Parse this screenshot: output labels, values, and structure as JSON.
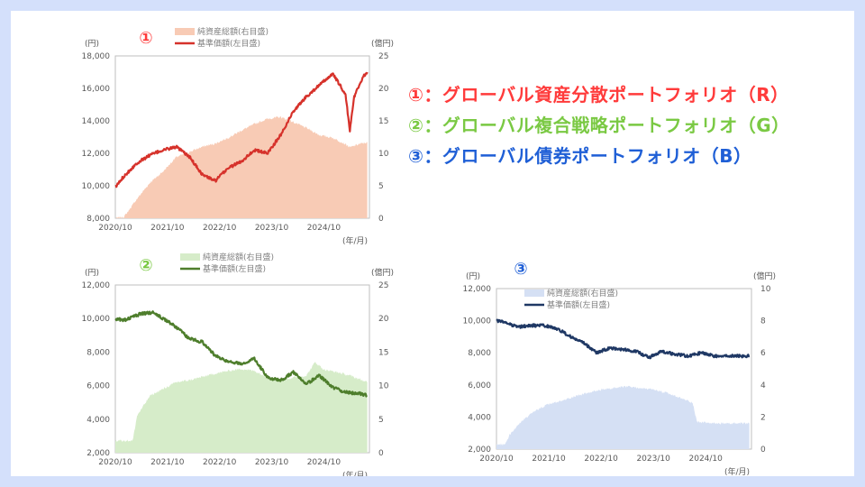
{
  "titles": [
    {
      "text": "①：グローバル資産分散ポートフォリオ（R）",
      "color": "#ff3b3b"
    },
    {
      "text": "②：グローバル複合戦略ポートフォリオ（G）",
      "color": "#7ac943"
    },
    {
      "text": "③：グローバル債券ポートフォリオ（B）",
      "color": "#1f5fd6"
    }
  ],
  "chart_data": [
    {
      "type": "line",
      "marker": "①",
      "marker_color": "#ff3b3b",
      "left_unit": "(円)",
      "right_unit": "(億円)",
      "x_unit": "(年/月)",
      "x_ticks": [
        "2020/10",
        "2021/10",
        "2022/10",
        "2023/10",
        "2024/10"
      ],
      "y_left_ticks": [
        "8,000",
        "10,000",
        "12,000",
        "14,000",
        "16,000",
        "18,000"
      ],
      "y_right_ticks": [
        "0",
        "5",
        "10",
        "15",
        "20",
        "25"
      ],
      "ylim_left": [
        8000,
        18000
      ],
      "ylim_right": [
        0,
        25
      ],
      "legend_area": "純資産総額(右目盛)",
      "legend_line": "基準価額(左目盛)",
      "area_color": "#f8cbb5",
      "line_color": "#d6322b",
      "nav_points": [
        [
          "2020/10",
          9900
        ],
        [
          "2020/12",
          10600
        ],
        [
          "2021/03",
          11400
        ],
        [
          "2021/06",
          11900
        ],
        [
          "2021/09",
          12200
        ],
        [
          "2021/12",
          12400
        ],
        [
          "2022/03",
          11800
        ],
        [
          "2022/06",
          10700
        ],
        [
          "2022/09",
          10300
        ],
        [
          "2022/12",
          11100
        ],
        [
          "2023/03",
          11500
        ],
        [
          "2023/06",
          12200
        ],
        [
          "2023/09",
          12000
        ],
        [
          "2023/12",
          13100
        ],
        [
          "2024/03",
          14600
        ],
        [
          "2024/06",
          15500
        ],
        [
          "2024/09",
          16200
        ],
        [
          "2024/12",
          16900
        ],
        [
          "2025/01",
          16500
        ],
        [
          "2025/03",
          15600
        ],
        [
          "2025/04",
          13400
        ],
        [
          "2025/05",
          15500
        ],
        [
          "2025/07",
          16700
        ],
        [
          "2025/08",
          17000
        ]
      ],
      "aum_points": [
        [
          "2020/10",
          0
        ],
        [
          "2020/12",
          0.2
        ],
        [
          "2021/03",
          3.0
        ],
        [
          "2021/06",
          5.5
        ],
        [
          "2021/09",
          7.2
        ],
        [
          "2021/12",
          9.4
        ],
        [
          "2022/03",
          10.2
        ],
        [
          "2022/06",
          11.0
        ],
        [
          "2022/09",
          11.5
        ],
        [
          "2022/12",
          12.4
        ],
        [
          "2023/03",
          13.5
        ],
        [
          "2023/06",
          14.5
        ],
        [
          "2023/09",
          15.3
        ],
        [
          "2023/12",
          15.6
        ],
        [
          "2024/03",
          14.8
        ],
        [
          "2024/06",
          13.9
        ],
        [
          "2024/09",
          12.8
        ],
        [
          "2024/12",
          12.4
        ],
        [
          "2025/03",
          11.4
        ],
        [
          "2025/04",
          10.9
        ],
        [
          "2025/06",
          11.4
        ],
        [
          "2025/08",
          11.7
        ]
      ]
    },
    {
      "type": "line",
      "marker": "②",
      "marker_color": "#7ac943",
      "left_unit": "(円)",
      "right_unit": "(億円)",
      "x_unit": "(年/月)",
      "x_ticks": [
        "2020/10",
        "2021/10",
        "2022/10",
        "2023/10",
        "2024/10"
      ],
      "y_left_ticks": [
        "2,000",
        "4,000",
        "6,000",
        "8,000",
        "10,000",
        "12,000"
      ],
      "y_right_ticks": [
        "0",
        "5",
        "10",
        "15",
        "20",
        "25"
      ],
      "ylim_left": [
        2000,
        12000
      ],
      "ylim_right": [
        0,
        25
      ],
      "legend_area": "純資産総額(右目盛)",
      "legend_line": "基準価額(左目盛)",
      "area_color": "#d6ecc9",
      "line_color": "#4e7e2c",
      "nav_points": [
        [
          "2020/10",
          10000
        ],
        [
          "2020/12",
          9900
        ],
        [
          "2021/02",
          10100
        ],
        [
          "2021/04",
          10300
        ],
        [
          "2021/07",
          10350
        ],
        [
          "2021/09",
          10000
        ],
        [
          "2021/12",
          9500
        ],
        [
          "2022/03",
          8800
        ],
        [
          "2022/06",
          8600
        ],
        [
          "2022/09",
          7800
        ],
        [
          "2022/12",
          7400
        ],
        [
          "2023/03",
          7300
        ],
        [
          "2023/06",
          7600
        ],
        [
          "2023/09",
          6500
        ],
        [
          "2023/12",
          6300
        ],
        [
          "2024/03",
          6800
        ],
        [
          "2024/06",
          6100
        ],
        [
          "2024/09",
          6600
        ],
        [
          "2024/12",
          5900
        ],
        [
          "2025/03",
          5600
        ],
        [
          "2025/06",
          5550
        ],
        [
          "2025/08",
          5400
        ]
      ],
      "aum_points": [
        [
          "2020/10",
          1.8
        ],
        [
          "2020/12",
          1.8
        ],
        [
          "2021/02",
          1.8
        ],
        [
          "2021/03",
          5.5
        ],
        [
          "2021/06",
          8.5
        ],
        [
          "2021/09",
          9.5
        ],
        [
          "2021/12",
          10.5
        ],
        [
          "2022/03",
          10.8
        ],
        [
          "2022/06",
          11.3
        ],
        [
          "2022/09",
          11.8
        ],
        [
          "2022/12",
          12.2
        ],
        [
          "2023/03",
          12.5
        ],
        [
          "2023/06",
          12.2
        ],
        [
          "2023/09",
          11.2
        ],
        [
          "2023/12",
          10.8
        ],
        [
          "2024/03",
          11.2
        ],
        [
          "2024/06",
          11.5
        ],
        [
          "2024/08",
          13.5
        ],
        [
          "2024/10",
          12.4
        ],
        [
          "2025/01",
          12.0
        ],
        [
          "2025/04",
          11.5
        ],
        [
          "2025/08",
          10.5
        ]
      ]
    },
    {
      "type": "line",
      "marker": "③",
      "marker_color": "#1f5fd6",
      "left_unit": "(円)",
      "right_unit": "(億円)",
      "x_unit": "(年/月)",
      "x_ticks": [
        "2020/10",
        "2021/10",
        "2022/10",
        "2023/10",
        "2024/10"
      ],
      "y_left_ticks": [
        "2,000",
        "4,000",
        "6,000",
        "8,000",
        "10,000",
        "12,000"
      ],
      "y_right_ticks": [
        "0",
        "2",
        "4",
        "6",
        "8",
        "10"
      ],
      "ylim_left": [
        2000,
        12000
      ],
      "ylim_right": [
        0,
        10
      ],
      "legend_area": "純資産総額(右目盛)",
      "legend_line": "基準価額(左目盛)",
      "area_color": "#d5e0f4",
      "line_color": "#1f3864",
      "nav_points": [
        [
          "2020/10",
          10000
        ],
        [
          "2020/12",
          9900
        ],
        [
          "2021/03",
          9600
        ],
        [
          "2021/06",
          9700
        ],
        [
          "2021/09",
          9700
        ],
        [
          "2021/12",
          9500
        ],
        [
          "2022/03",
          9000
        ],
        [
          "2022/06",
          8600
        ],
        [
          "2022/09",
          8000
        ],
        [
          "2022/12",
          8300
        ],
        [
          "2023/03",
          8200
        ],
        [
          "2023/06",
          8100
        ],
        [
          "2023/09",
          7700
        ],
        [
          "2023/12",
          8100
        ],
        [
          "2024/03",
          7900
        ],
        [
          "2024/06",
          7800
        ],
        [
          "2024/09",
          8000
        ],
        [
          "2024/12",
          7800
        ],
        [
          "2025/03",
          7800
        ],
        [
          "2025/06",
          7800
        ],
        [
          "2025/08",
          7800
        ]
      ],
      "aum_points": [
        [
          "2020/10",
          0.3
        ],
        [
          "2020/12",
          0.3
        ],
        [
          "2021/01",
          0.9
        ],
        [
          "2021/04",
          1.8
        ],
        [
          "2021/07",
          2.4
        ],
        [
          "2021/10",
          2.8
        ],
        [
          "2022/01",
          3.0
        ],
        [
          "2022/04",
          3.3
        ],
        [
          "2022/07",
          3.5
        ],
        [
          "2022/10",
          3.7
        ],
        [
          "2023/01",
          3.8
        ],
        [
          "2023/04",
          3.9
        ],
        [
          "2023/07",
          3.8
        ],
        [
          "2023/10",
          3.7
        ],
        [
          "2024/01",
          3.5
        ],
        [
          "2024/04",
          3.2
        ],
        [
          "2024/07",
          2.9
        ],
        [
          "2024/08",
          1.7
        ],
        [
          "2024/12",
          1.6
        ],
        [
          "2025/04",
          1.6
        ],
        [
          "2025/08",
          1.6
        ]
      ]
    }
  ]
}
